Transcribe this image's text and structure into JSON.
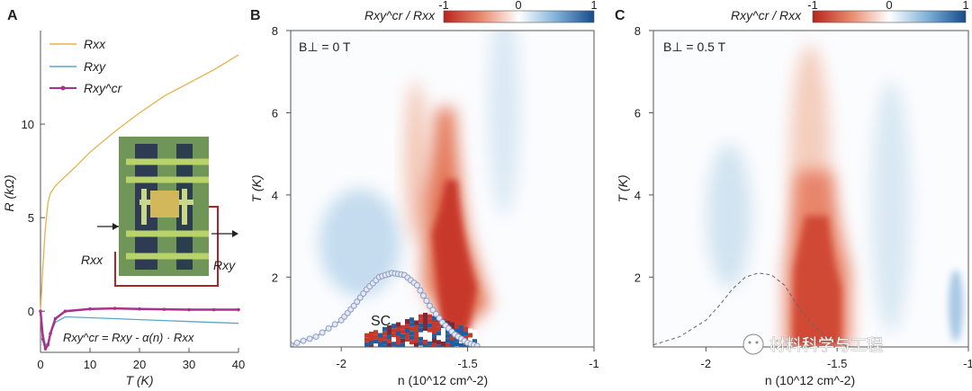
{
  "colors": {
    "rxx": "#e5b24a",
    "rxy": "#5aa7c9",
    "rxy_cr": "#a8328c",
    "red": "#c8382a",
    "blue": "#1f5f9f",
    "sc_outline": "#8c9bc2",
    "device_border": "#c02a2a",
    "device_bg": "#8fae6a"
  },
  "watermark": "材料科学与工程",
  "chart_data": [
    {
      "panel": "A",
      "type": "line",
      "xlabel": "T (K)",
      "ylabel": "R (kΩ)",
      "xlim": [
        0,
        40
      ],
      "ylim": [
        -2.2,
        15
      ],
      "xticks": [
        "0",
        "10",
        "20",
        "30",
        "40"
      ],
      "yticks": [
        "0",
        "5",
        "10"
      ],
      "legend": [
        "Rxx",
        "Rxy",
        "Rxy^cr"
      ],
      "legend_position": "top-left",
      "formula": "Rxy^cr = Rxy - α(n) · Rxx",
      "inset_labels": [
        "Rxx",
        "Rxy"
      ],
      "series": [
        {
          "name": "Rxx",
          "x": [
            0,
            0.5,
            1,
            1.5,
            2,
            3,
            5,
            7,
            10,
            15,
            20,
            25,
            30,
            35,
            40
          ],
          "y": [
            0,
            2.5,
            4.5,
            5.8,
            6.3,
            6.7,
            7.2,
            7.7,
            8.5,
            9.6,
            10.6,
            11.5,
            12.2,
            12.9,
            13.7
          ]
        },
        {
          "name": "Rxy",
          "x": [
            0,
            0.5,
            1,
            1.5,
            2,
            3,
            5,
            10,
            15,
            20,
            25,
            30,
            35,
            40
          ],
          "y": [
            0,
            -1.2,
            -1.8,
            -1.7,
            -1.2,
            -0.6,
            -0.3,
            -0.35,
            -0.4,
            -0.45,
            -0.5,
            -0.55,
            -0.6,
            -0.65
          ]
        },
        {
          "name": "Rxy^cr",
          "x": [
            0,
            0.5,
            1,
            1.5,
            2,
            3,
            5,
            10,
            15,
            20,
            25,
            30,
            35,
            40
          ],
          "y": [
            0,
            -1.5,
            -2.0,
            -1.8,
            -1.2,
            -0.4,
            0.0,
            0.12,
            0.15,
            0.12,
            0.1,
            0.08,
            0.08,
            0.08
          ]
        }
      ]
    },
    {
      "panel": "B",
      "type": "heatmap",
      "annotation": "B⊥ = 0 T",
      "region_label": "SC",
      "xlabel": "n (10^12 cm^-2)",
      "ylabel": "T (K)",
      "xlim": [
        -2.2,
        -1.0
      ],
      "ylim": [
        0.3,
        8
      ],
      "xticks": [
        "-2",
        "-1.5",
        "-1"
      ],
      "yticks": [
        "2",
        "4",
        "6",
        "8"
      ],
      "colorbar_title": "Rxy^cr / Rxx",
      "colorbar_ticks": [
        "-1",
        "0",
        "1"
      ],
      "sc_boundary": {
        "n": [
          -2.2,
          -2.1,
          -2.0,
          -1.95,
          -1.9,
          -1.85,
          -1.8,
          -1.75,
          -1.7,
          -1.65,
          -1.6,
          -1.55,
          -1.5,
          -1.45
        ],
        "T": [
          0.35,
          0.55,
          0.95,
          1.3,
          1.7,
          2.0,
          2.1,
          2.05,
          1.8,
          1.3,
          0.9,
          0.6,
          0.4,
          0.3
        ]
      }
    },
    {
      "panel": "C",
      "type": "heatmap",
      "annotation": "B⊥ = 0.5 T",
      "xlabel": "n (10^12 cm^-2)",
      "ylabel": "T (K)",
      "xlim": [
        -2.2,
        -1.0
      ],
      "ylim": [
        0.3,
        8
      ],
      "xticks": [
        "-2",
        "-1.5",
        "-1"
      ],
      "yticks": [
        "2",
        "4",
        "6",
        "8"
      ],
      "colorbar_title": "Rxy^cr / Rxx",
      "colorbar_ticks": [
        "-1",
        "0",
        "1"
      ],
      "sc_boundary": {
        "n": [
          -2.2,
          -2.1,
          -2.0,
          -1.95,
          -1.9,
          -1.85,
          -1.8,
          -1.75,
          -1.7,
          -1.65,
          -1.6,
          -1.55,
          -1.5,
          -1.45
        ],
        "T": [
          0.35,
          0.55,
          0.95,
          1.3,
          1.7,
          2.0,
          2.1,
          2.05,
          1.8,
          1.3,
          0.9,
          0.6,
          0.4,
          0.3
        ]
      }
    }
  ]
}
